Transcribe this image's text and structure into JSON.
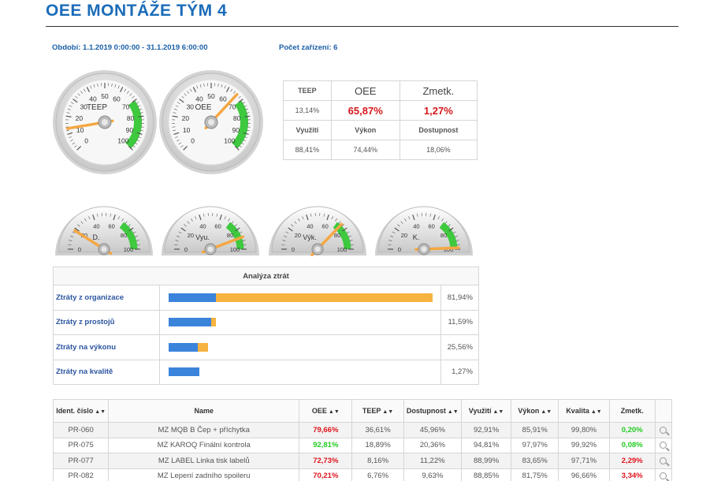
{
  "header": {
    "title": "OEE MONTÁŽE TÝM 4",
    "period": "Období: 1.1.2019 0:00:00 - 31.1.2019 6:00:00",
    "device_count": "Počet zařízení: 6"
  },
  "gauges_big": [
    {
      "label": "TEEP",
      "value": 13.14,
      "ticks": [
        "0",
        "10",
        "20",
        "30",
        "40",
        "50",
        "60",
        "70",
        "80",
        "90",
        "100"
      ]
    },
    {
      "label": "OEE",
      "value": 65.87,
      "ticks": [
        "0",
        "10",
        "20",
        "30",
        "40",
        "50",
        "60",
        "70",
        "80",
        "90",
        "100"
      ]
    }
  ],
  "gauges_small": [
    {
      "label": "D.",
      "value": 18.06,
      "ticks": [
        "0",
        "20",
        "40",
        "60",
        "80",
        "100"
      ]
    },
    {
      "label": "Vyu.",
      "value": 88.41,
      "ticks": [
        "0",
        "20",
        "40",
        "60",
        "80",
        "100"
      ]
    },
    {
      "label": "Výk.",
      "value": 74.44,
      "ticks": [
        "0",
        "20",
        "40",
        "60",
        "80",
        "100"
      ]
    },
    {
      "label": "K.",
      "value": 98.73,
      "ticks": [
        "0",
        "20",
        "40",
        "60",
        "80",
        "100"
      ]
    }
  ],
  "kpi": {
    "teep_label": "TEEP",
    "oee_label": "OEE",
    "scrap_label": "Zmetk.",
    "teep_value": "13,14%",
    "oee_value": "65,87%",
    "scrap_value": "1,27%",
    "util_label": "Využití",
    "perf_label": "Výkon",
    "avail_label": "Dostupnost",
    "util_value": "88,41%",
    "perf_value": "74,44%",
    "avail_value": "18,06%"
  },
  "losses": {
    "title": "Analýza ztrát",
    "rows": [
      {
        "label": "Ztráty z organizace",
        "blue": 18,
        "orange": 81.94,
        "value": "81,94%"
      },
      {
        "label": "Ztráty z prostojů",
        "blue": 16,
        "orange": 2,
        "value": "11,59%"
      },
      {
        "label": "Ztráty na výkonu",
        "blue": 11,
        "orange": 4,
        "value": "25,56%"
      },
      {
        "label": "Ztráty na kvalitě",
        "blue": 11.5,
        "orange": 0,
        "value": "1,27%"
      }
    ]
  },
  "devices": {
    "headers": [
      "Ident. číslo",
      "Name",
      "OEE",
      "TEEP",
      "Dostupnost",
      "Využití",
      "Výkon",
      "Kvalita",
      "Zmetk."
    ],
    "rows": [
      {
        "id": "PR-060",
        "name": "MZ MQB B Čep + příchytka",
        "oee": "79,66%",
        "teep": "36,61%",
        "avail": "45,96%",
        "util": "92,91%",
        "perf": "85,91%",
        "quality": "99,80%",
        "scrap": "0,20%",
        "scrap_color": "green"
      },
      {
        "id": "PR-075",
        "name": "MZ KAROQ Finální kontrola",
        "oee": "92,81%",
        "teep": "18,89%",
        "avail": "20,36%",
        "util": "94,81%",
        "perf": "97,97%",
        "quality": "99,92%",
        "scrap": "0,08%",
        "scrap_color": "green"
      },
      {
        "id": "PR-077",
        "name": "MZ LABEL Linka tisk labelů",
        "oee": "72,73%",
        "teep": "8,16%",
        "avail": "11,22%",
        "util": "88,99%",
        "perf": "83,65%",
        "quality": "97,71%",
        "scrap": "2,29%",
        "scrap_color": "red"
      },
      {
        "id": "PR-082",
        "name": "MZ Lepení zadního spoileru",
        "oee": "70,21%",
        "teep": "6,76%",
        "avail": "9,63%",
        "util": "88,85%",
        "perf": "81,75%",
        "quality": "96,66%",
        "scrap": "3,34%",
        "scrap_color": "red"
      }
    ]
  },
  "colors": {
    "title": "#1b6cb8",
    "red": "#d4171c",
    "green": "#22cc22",
    "bar_blue": "#3b84dc",
    "bar_orange": "#f6b33f"
  }
}
